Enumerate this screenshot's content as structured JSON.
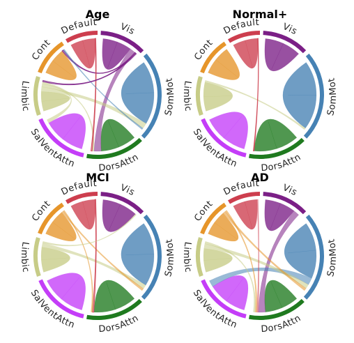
{
  "chart_data": [
    {
      "type": "chord",
      "title": "Age",
      "networks": [
        {
          "name": "Vis",
          "color": "#7b1f86"
        },
        {
          "name": "SomMot",
          "color": "#4682b4"
        },
        {
          "name": "DorsAttn",
          "color": "#1f7a1f"
        },
        {
          "name": "SalVentAttn",
          "color": "#c43df8"
        },
        {
          "name": "Limbic",
          "color": "#c7cc87"
        },
        {
          "name": "Cont",
          "color": "#e6952a"
        },
        {
          "name": "Default",
          "color": "#cd3e4e"
        }
      ],
      "chords": [
        {
          "from": "Vis",
          "to": "Vis",
          "value": 3
        },
        {
          "from": "SomMot",
          "to": "SomMot",
          "value": 4
        },
        {
          "from": "DorsAttn",
          "to": "DorsAttn",
          "value": 3
        },
        {
          "from": "SalVentAttn",
          "to": "SalVentAttn",
          "value": 3
        },
        {
          "from": "Limbic",
          "to": "Limbic",
          "value": 1.5
        },
        {
          "from": "Cont",
          "to": "Cont",
          "value": 2
        },
        {
          "from": "Default",
          "to": "Default",
          "value": 3
        },
        {
          "from": "Vis",
          "to": "DorsAttn",
          "value": 1.2
        },
        {
          "from": "Limbic",
          "to": "SomMot",
          "value": 0.7
        },
        {
          "from": "Limbic",
          "to": "SalVentAttn",
          "value": 0.5
        },
        {
          "from": "Vis",
          "to": "Cont",
          "value": 0.2
        },
        {
          "from": "Default",
          "to": "DorsAttn",
          "value": 0.2
        },
        {
          "from": "Limbic",
          "to": "DorsAttn",
          "value": 0.3
        },
        {
          "from": "SomMot",
          "to": "Cont",
          "value": 0.2
        },
        {
          "from": "Vis",
          "to": "Limbic",
          "value": 0.2
        }
      ]
    },
    {
      "type": "chord",
      "title": "Normal+",
      "networks": [
        {
          "name": "Vis",
          "color": "#7b1f86"
        },
        {
          "name": "SomMot",
          "color": "#4682b4"
        },
        {
          "name": "DorsAttn",
          "color": "#1f7a1f"
        },
        {
          "name": "SalVentAttn",
          "color": "#c43df8"
        },
        {
          "name": "Limbic",
          "color": "#c7cc87"
        },
        {
          "name": "Cont",
          "color": "#e6952a"
        },
        {
          "name": "Default",
          "color": "#cd3e4e"
        }
      ],
      "chords": [
        {
          "from": "Vis",
          "to": "Vis",
          "value": 3
        },
        {
          "from": "SomMot",
          "to": "SomMot",
          "value": 4
        },
        {
          "from": "DorsAttn",
          "to": "DorsAttn",
          "value": 3
        },
        {
          "from": "SalVentAttn",
          "to": "SalVentAttn",
          "value": 3
        },
        {
          "from": "Limbic",
          "to": "Limbic",
          "value": 1.5
        },
        {
          "from": "Cont",
          "to": "Cont",
          "value": 2
        },
        {
          "from": "Default",
          "to": "Default",
          "value": 3
        },
        {
          "from": "Limbic",
          "to": "SomMot",
          "value": 0.2
        },
        {
          "from": "Default",
          "to": "DorsAttn",
          "value": 0.1
        }
      ]
    },
    {
      "type": "chord",
      "title": "MCI",
      "networks": [
        {
          "name": "Vis",
          "color": "#7b1f86"
        },
        {
          "name": "SomMot",
          "color": "#4682b4"
        },
        {
          "name": "DorsAttn",
          "color": "#1f7a1f"
        },
        {
          "name": "SalVentAttn",
          "color": "#c43df8"
        },
        {
          "name": "Limbic",
          "color": "#c7cc87"
        },
        {
          "name": "Cont",
          "color": "#e6952a"
        },
        {
          "name": "Default",
          "color": "#cd3e4e"
        }
      ],
      "chords": [
        {
          "from": "Vis",
          "to": "Vis",
          "value": 3
        },
        {
          "from": "SomMot",
          "to": "SomMot",
          "value": 4
        },
        {
          "from": "DorsAttn",
          "to": "DorsAttn",
          "value": 3
        },
        {
          "from": "SalVentAttn",
          "to": "SalVentAttn",
          "value": 3
        },
        {
          "from": "Limbic",
          "to": "Limbic",
          "value": 1.5
        },
        {
          "from": "Cont",
          "to": "Cont",
          "value": 2
        },
        {
          "from": "Default",
          "to": "Default",
          "value": 3
        },
        {
          "from": "Limbic",
          "to": "SomMot",
          "value": 0.5
        },
        {
          "from": "Cont",
          "to": "SomMot",
          "value": 0.3
        },
        {
          "from": "Default",
          "to": "DorsAttn",
          "value": 0.2
        },
        {
          "from": "Cont",
          "to": "DorsAttn",
          "value": 0.2
        },
        {
          "from": "Limbic",
          "to": "Vis",
          "value": 0.2
        }
      ]
    },
    {
      "type": "chord",
      "title": "AD",
      "networks": [
        {
          "name": "Vis",
          "color": "#7b1f86"
        },
        {
          "name": "SomMot",
          "color": "#4682b4"
        },
        {
          "name": "DorsAttn",
          "color": "#1f7a1f"
        },
        {
          "name": "SalVentAttn",
          "color": "#c43df8"
        },
        {
          "name": "Limbic",
          "color": "#c7cc87"
        },
        {
          "name": "Cont",
          "color": "#e6952a"
        },
        {
          "name": "Default",
          "color": "#cd3e4e"
        }
      ],
      "chords": [
        {
          "from": "Vis",
          "to": "Vis",
          "value": 3
        },
        {
          "from": "SomMot",
          "to": "SomMot",
          "value": 4
        },
        {
          "from": "DorsAttn",
          "to": "DorsAttn",
          "value": 3
        },
        {
          "from": "SalVentAttn",
          "to": "SalVentAttn",
          "value": 3
        },
        {
          "from": "Limbic",
          "to": "Limbic",
          "value": 1.5
        },
        {
          "from": "Cont",
          "to": "Cont",
          "value": 2
        },
        {
          "from": "Default",
          "to": "Default",
          "value": 3
        },
        {
          "from": "Vis",
          "to": "DorsAttn",
          "value": 1.2
        },
        {
          "from": "SomMot",
          "to": "SalVentAttn",
          "value": 1.0
        },
        {
          "from": "Limbic",
          "to": "SomMot",
          "value": 0.6
        },
        {
          "from": "Cont",
          "to": "SomMot",
          "value": 0.4
        },
        {
          "from": "Default",
          "to": "DorsAttn",
          "value": 0.3
        },
        {
          "from": "Cont",
          "to": "DorsAttn",
          "value": 0.3
        },
        {
          "from": "Limbic",
          "to": "DorsAttn",
          "value": 0.3
        }
      ]
    }
  ]
}
